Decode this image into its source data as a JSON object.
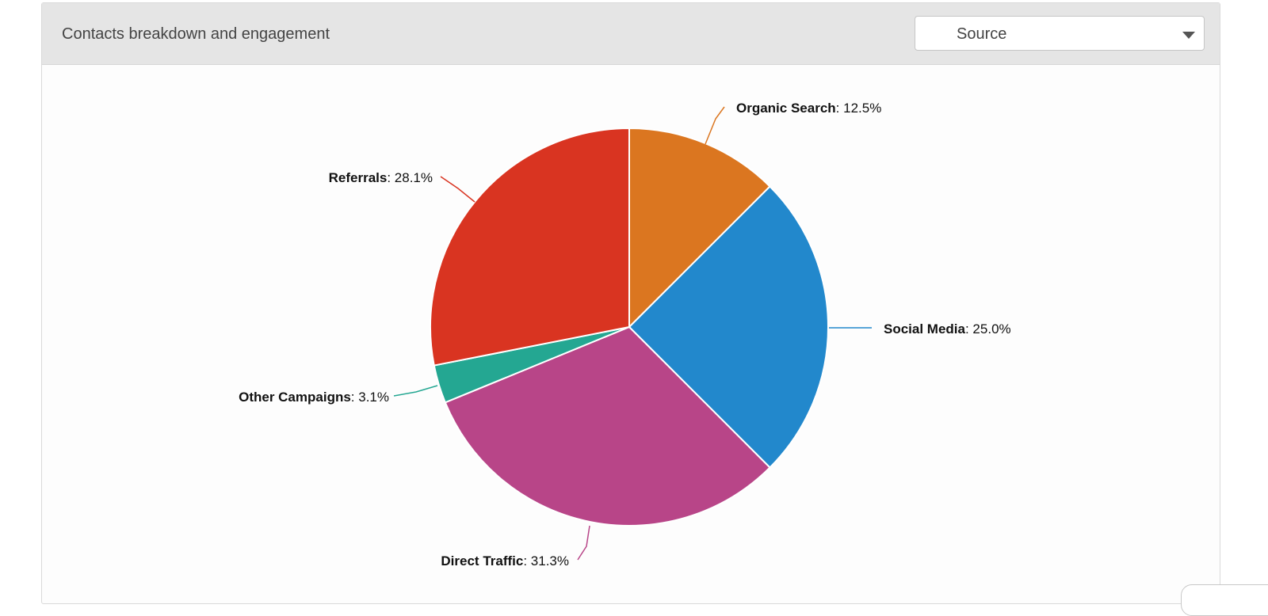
{
  "panel": {
    "title": "Contacts breakdown and engagement",
    "dropdown": {
      "selected": "Source"
    }
  },
  "colors": {
    "header_bg": "#e5e5e5",
    "panel_bg": "#fdfdfd"
  },
  "chart_data": {
    "type": "pie",
    "start_angle_deg": 0,
    "direction": "clockwise",
    "slices": [
      {
        "name": "Organic Search",
        "value": 12.5,
        "label": "12.5%",
        "color": "#db7620"
      },
      {
        "name": "Social Media",
        "value": 25.0,
        "label": "25.0%",
        "color": "#2288cc"
      },
      {
        "name": "Direct Traffic",
        "value": 31.3,
        "label": "31.3%",
        "color": "#b84588"
      },
      {
        "name": "Other Campaigns",
        "value": 3.1,
        "label": "3.1%",
        "color": "#24a792"
      },
      {
        "name": "Referrals",
        "value": 28.1,
        "label": "28.1%",
        "color": "#d93421"
      }
    ]
  }
}
